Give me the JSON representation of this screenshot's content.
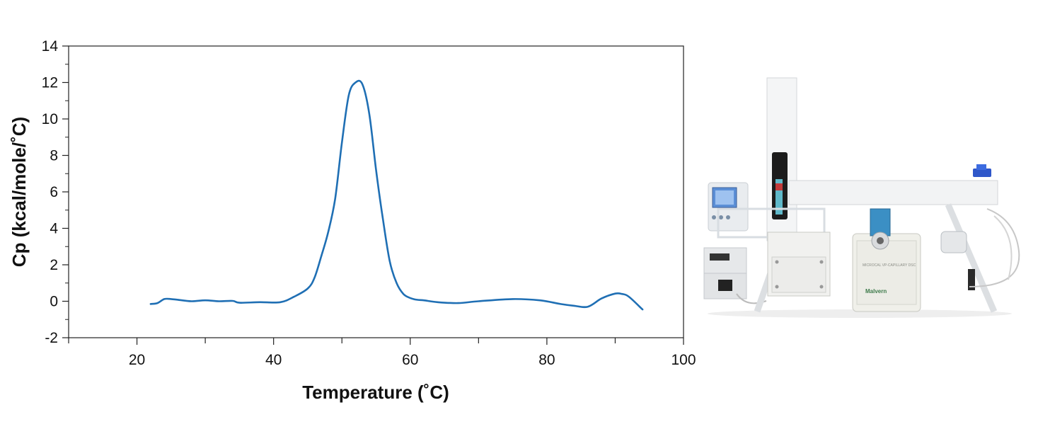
{
  "chart_data": {
    "type": "line",
    "xlabel": "Temperature (˚C)",
    "ylabel": "Cp (kcal/mole/˚C)",
    "xlim": [
      10,
      100
    ],
    "ylim": [
      -2,
      14
    ],
    "x_ticks": [
      20,
      40,
      60,
      80,
      100
    ],
    "y_ticks": [
      -2,
      0,
      2,
      4,
      6,
      8,
      10,
      12,
      14
    ],
    "x_tick_labels": [
      "20",
      "40",
      "60",
      "80",
      "100"
    ],
    "y_tick_labels": [
      "-2",
      "0",
      "2",
      "4",
      "6",
      "8",
      "10",
      "12",
      "14"
    ],
    "grid": false,
    "line_color": "#1f6fb4",
    "series": [
      {
        "x": [
          22,
          23,
          24,
          25,
          26,
          28,
          30,
          32,
          34,
          35,
          38,
          41,
          43,
          45,
          46,
          47,
          48,
          49,
          50,
          51,
          52,
          53,
          54,
          55,
          56,
          57,
          58,
          59,
          60,
          61,
          62,
          64,
          67,
          70,
          75,
          79,
          82,
          84,
          86,
          88,
          90,
          91,
          92,
          94
        ],
        "y": [
          -0.15,
          -0.1,
          0.12,
          0.12,
          0.08,
          0.0,
          0.05,
          0.0,
          0.02,
          -0.08,
          -0.05,
          -0.05,
          0.25,
          0.7,
          1.3,
          2.5,
          3.8,
          5.6,
          8.7,
          11.3,
          12.0,
          11.9,
          10.3,
          7.2,
          4.5,
          2.2,
          1.0,
          0.4,
          0.18,
          0.08,
          0.05,
          -0.05,
          -0.1,
          0.0,
          0.12,
          0.05,
          -0.15,
          -0.25,
          -0.3,
          0.15,
          0.42,
          0.4,
          0.25,
          -0.45
        ]
      }
    ]
  },
  "instrument_photo": {
    "brand_label": "Malvern",
    "model_label": "MICROCAL VP-CAPILLARY DSC",
    "accent_color": "#3b8fc4"
  }
}
